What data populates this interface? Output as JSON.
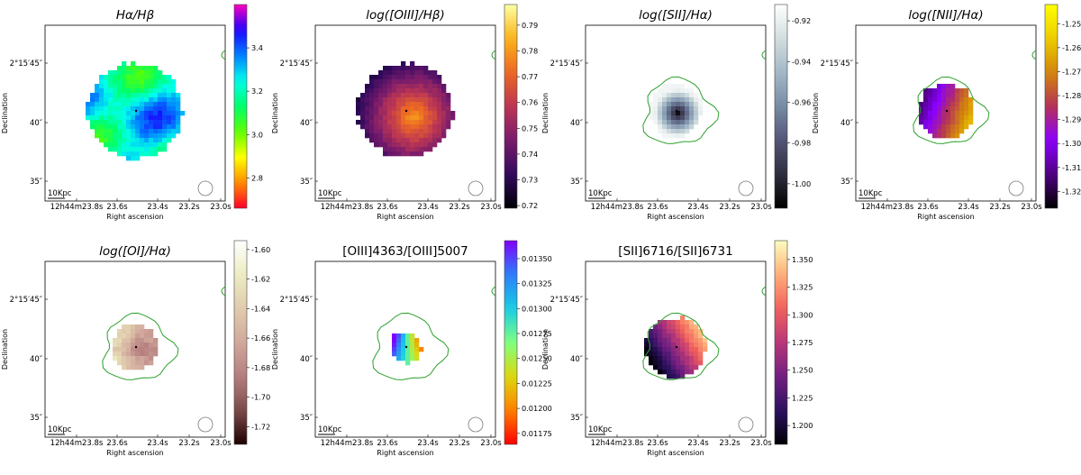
{
  "chart_data": [
    {
      "type": "heatmap",
      "title": "Hα/Hβ",
      "title_style": "italic",
      "colormap": "gist_rainbow",
      "colorbar_ticks": [
        "3.4",
        "3.2",
        "3.0",
        "2.8"
      ],
      "colorbar_range": [
        2.66,
        3.6
      ],
      "colorbar_tick_values": [
        3.4,
        3.2,
        3.0,
        2.8
      ],
      "map_radius_arcsec": 3.6,
      "contour": false,
      "xlabel": "Right ascension",
      "ylabel": "Declination",
      "xticks": [
        "12h44m23.8s",
        "23.6s",
        "23.4s",
        "23.2s",
        "23.0s"
      ],
      "yticks": [
        "2°15′45″",
        "40″",
        "35″"
      ],
      "scalebar": "10Kpc"
    },
    {
      "type": "heatmap",
      "title": "log([OIII]/Hβ)",
      "title_style": "italic",
      "colormap": "inferno",
      "colorbar_ticks": [
        "0.79",
        "0.78",
        "0.77",
        "0.76",
        "0.75",
        "0.74",
        "0.73",
        "0.72"
      ],
      "colorbar_range": [
        0.719,
        0.798
      ],
      "colorbar_tick_values": [
        0.79,
        0.78,
        0.77,
        0.76,
        0.75,
        0.74,
        0.73,
        0.72
      ],
      "map_radius_arcsec": 3.6,
      "contour": false,
      "xlabel": "Right ascension",
      "ylabel": "Declination",
      "xticks": [
        "12h44m23.8s",
        "23.6s",
        "23.4s",
        "23.2s",
        "23.0s"
      ],
      "yticks": [
        "2°15′45″",
        "40″",
        "35″"
      ],
      "scalebar": "10Kpc"
    },
    {
      "type": "heatmap",
      "title": "log([SII]/Hα)",
      "title_style": "italic",
      "colormap": "bone",
      "colorbar_ticks": [
        "-0.92",
        "-0.94",
        "-0.96",
        "-0.98",
        "-1.00"
      ],
      "colorbar_range": [
        -1.012,
        -0.912
      ],
      "colorbar_tick_values": [
        -0.92,
        -0.94,
        -0.96,
        -0.98,
        -1.0
      ],
      "map_radius_arcsec": 2.0,
      "contour": true,
      "xlabel": "Right ascension",
      "ylabel": "Declination",
      "xticks": [
        "12h44m23.8s",
        "23.6s",
        "23.4s",
        "23.2s",
        "23.0s"
      ],
      "yticks": [
        "2°15′45″",
        "40″",
        "35″"
      ],
      "scalebar": "10Kpc"
    },
    {
      "type": "heatmap",
      "title": "log([NII]/Hα)",
      "title_style": "italic",
      "colormap": "gnuplot",
      "colorbar_ticks": [
        "-1.25",
        "-1.26",
        "-1.27",
        "-1.28",
        "-1.29",
        "-1.30",
        "-1.31",
        "-1.32"
      ],
      "colorbar_range": [
        -1.327,
        -1.242
      ],
      "colorbar_tick_values": [
        -1.25,
        -1.26,
        -1.27,
        -1.28,
        -1.29,
        -1.3,
        -1.31,
        -1.32
      ],
      "map_radius_arcsec": 2.1,
      "contour": true,
      "xlabel": "Right ascension",
      "ylabel": "Declination",
      "xticks": [
        "12h44m23.8s",
        "23.6s",
        "23.4s",
        "23.2s",
        "23.0s"
      ],
      "yticks": [
        "2°15′45″",
        "40″",
        "35″"
      ],
      "scalebar": "10Kpc"
    },
    {
      "type": "heatmap",
      "title": "log([OI]/Hα)",
      "title_style": "italic",
      "colormap": "pink",
      "colorbar_ticks": [
        "-1.60",
        "-1.62",
        "-1.64",
        "-1.66",
        "-1.68",
        "-1.70",
        "-1.72"
      ],
      "colorbar_range": [
        -1.732,
        -1.594
      ],
      "colorbar_tick_values": [
        -1.6,
        -1.62,
        -1.64,
        -1.66,
        -1.68,
        -1.7,
        -1.72
      ],
      "map_radius_arcsec": 1.8,
      "contour": true,
      "xlabel": "Right ascension",
      "ylabel": "Declination",
      "xticks": [
        "12h44m23.8s",
        "23.6s",
        "23.4s",
        "23.2s",
        "23.0s"
      ],
      "yticks": [
        "2°15′45″",
        "40″",
        "35″"
      ],
      "scalebar": "10Kpc"
    },
    {
      "type": "heatmap",
      "title": "[OIII]4363/[OIII]5007",
      "title_style": "mixed",
      "colormap": "rainbow_r",
      "colorbar_ticks": [
        "0.01350",
        "0.01325",
        "0.01300",
        "0.01275",
        "0.01250",
        "0.01225",
        "0.01200",
        "0.01175"
      ],
      "colorbar_range": [
        0.01164,
        0.01368
      ],
      "colorbar_tick_values": [
        0.0135,
        0.01325,
        0.013,
        0.01275,
        0.0125,
        0.01225,
        0.012,
        0.01175
      ],
      "map_radius_arcsec": 1.2,
      "contour": true,
      "xlabel": "Right ascension",
      "ylabel": "Declination",
      "xticks": [
        "12h44m23.8s",
        "23.6s",
        "23.4s",
        "23.2s",
        "23.0s"
      ],
      "yticks": [
        "2°15′45″",
        "40″",
        "35″"
      ],
      "scalebar": "10Kpc"
    },
    {
      "type": "heatmap",
      "title": "[SII]6716/[SII]6731",
      "title_style": "mixed",
      "colormap": "magma",
      "colorbar_ticks": [
        "1.350",
        "1.325",
        "1.300",
        "1.275",
        "1.250",
        "1.225",
        "1.200"
      ],
      "colorbar_range": [
        1.183,
        1.367
      ],
      "colorbar_tick_values": [
        1.35,
        1.325,
        1.3,
        1.275,
        1.25,
        1.225,
        1.2
      ],
      "map_radius_arcsec": 2.3,
      "contour": true,
      "xlabel": "Right ascension",
      "ylabel": "Declination",
      "xticks": [
        "12h44m23.8s",
        "23.6s",
        "23.4s",
        "23.2s",
        "23.0s"
      ],
      "yticks": [
        "2°15′45″",
        "40″",
        "35″"
      ],
      "scalebar": "10Kpc"
    }
  ]
}
